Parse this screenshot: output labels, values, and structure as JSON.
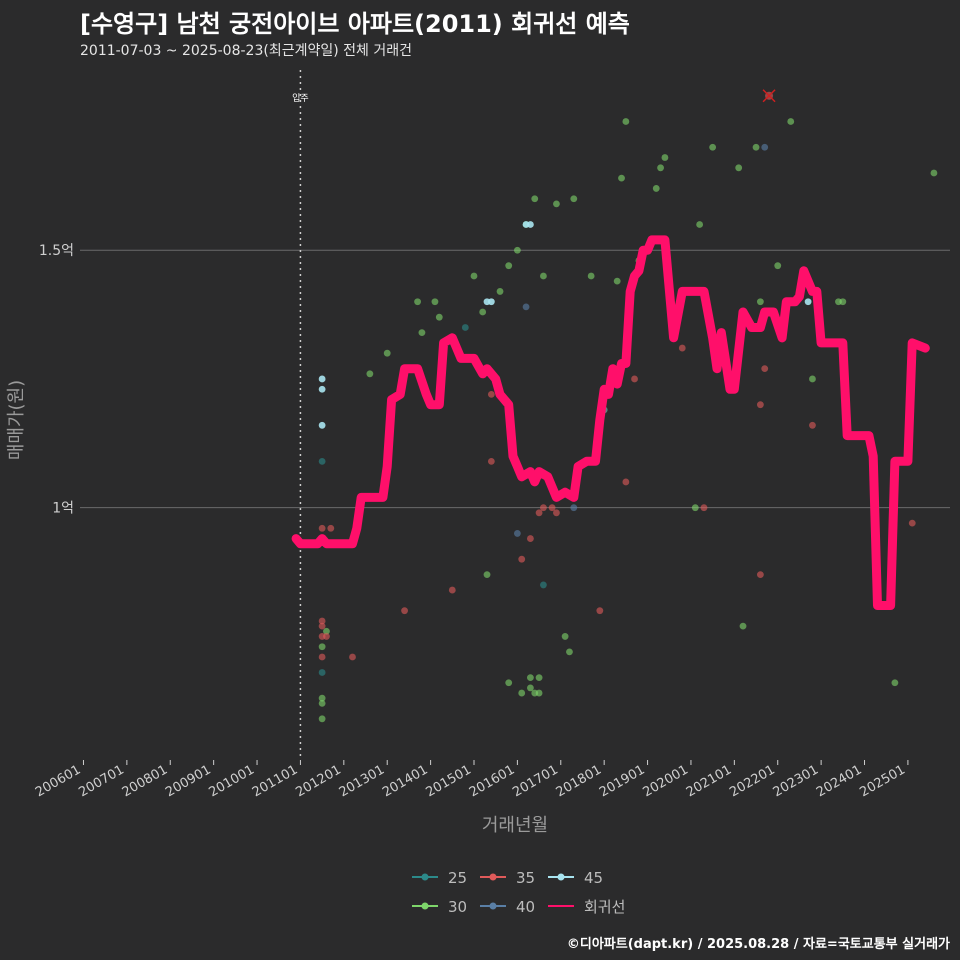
{
  "header": {
    "title": "[수영구] 남천 궁전아이브 아파트(2011) 회귀선 예측",
    "subtitle": "2011-07-03 ~ 2025-08-23(최근계약일) 전체 거래건"
  },
  "caption": "©디아파트(dapt.kr) / 2025.08.28 / 자료=국토교통부 실거래가",
  "colors": {
    "background": "#2b2b2c",
    "gridline": "#6b6b6b",
    "s25": "#2c8a8a",
    "s30": "#7ed66b",
    "s35": "#e05a5a",
    "s40": "#5a7fa6",
    "s45": "#a8e4f0",
    "regression": "#ff0f6a"
  },
  "chart_data": {
    "type": "scatter",
    "title": "[수영구] 남천 궁전아이브 아파트(2011) 회귀선 예측",
    "xlabel": "거래년월",
    "ylabel": "매매가(원)",
    "x_domain": [
      2005.92,
      2025.97
    ],
    "ylim": [
      0.51,
      1.85
    ],
    "x_ticks": [
      "200601",
      "200701",
      "200801",
      "200901",
      "201001",
      "201101",
      "201201",
      "201301",
      "201401",
      "201501",
      "201601",
      "201701",
      "201801",
      "201901",
      "202001",
      "202101",
      "202201",
      "202301",
      "202401",
      "202501"
    ],
    "y_ticks": [
      {
        "value": 1.0,
        "label": "1억"
      },
      {
        "value": 1.5,
        "label": "1.5억"
      }
    ],
    "vline": {
      "x": 2011.0,
      "label": "입주"
    },
    "legend": {
      "position": "bottom",
      "entries": [
        "25",
        "30",
        "35",
        "40",
        "45",
        "회귀선"
      ]
    },
    "series": [
      {
        "name": "25",
        "points": [
          [
            2011.5,
            0.68
          ],
          [
            2011.5,
            1.09
          ],
          [
            2014.8,
            1.35
          ],
          [
            2016.6,
            0.85
          ]
        ]
      },
      {
        "name": "30",
        "points": [
          [
            2011.5,
            0.63
          ],
          [
            2011.5,
            0.62
          ],
          [
            2011.5,
            0.59
          ],
          [
            2011.5,
            0.73
          ],
          [
            2011.6,
            0.76
          ],
          [
            2012.6,
            1.26
          ],
          [
            2013.0,
            1.3
          ],
          [
            2013.7,
            1.4
          ],
          [
            2013.8,
            1.34
          ],
          [
            2014.1,
            1.4
          ],
          [
            2014.2,
            1.37
          ],
          [
            2015.0,
            1.45
          ],
          [
            2015.2,
            1.38
          ],
          [
            2015.3,
            0.87
          ],
          [
            2015.6,
            1.42
          ],
          [
            2015.8,
            1.47
          ],
          [
            2015.8,
            0.66
          ],
          [
            2016.0,
            1.5
          ],
          [
            2016.1,
            0.64
          ],
          [
            2016.2,
            1.55
          ],
          [
            2016.3,
            0.67
          ],
          [
            2016.3,
            0.65
          ],
          [
            2016.4,
            0.64
          ],
          [
            2016.4,
            1.6
          ],
          [
            2016.5,
            0.67
          ],
          [
            2016.5,
            0.64
          ],
          [
            2016.6,
            1.45
          ],
          [
            2016.9,
            1.59
          ],
          [
            2017.1,
            0.75
          ],
          [
            2017.2,
            0.72
          ],
          [
            2017.3,
            1.6
          ],
          [
            2017.7,
            1.45
          ],
          [
            2018.0,
            1.19
          ],
          [
            2018.3,
            1.44
          ],
          [
            2018.4,
            1.64
          ],
          [
            2018.5,
            1.75
          ],
          [
            2018.8,
            1.48
          ],
          [
            2019.2,
            1.62
          ],
          [
            2019.3,
            1.66
          ],
          [
            2019.4,
            1.68
          ],
          [
            2020.1,
            1.0
          ],
          [
            2020.2,
            1.55
          ],
          [
            2020.5,
            1.7
          ],
          [
            2021.1,
            1.66
          ],
          [
            2021.2,
            0.77
          ],
          [
            2021.5,
            1.7
          ],
          [
            2021.6,
            1.4
          ],
          [
            2022.0,
            1.47
          ],
          [
            2022.3,
            1.75
          ],
          [
            2022.8,
            1.25
          ],
          [
            2023.4,
            1.4
          ],
          [
            2023.5,
            1.4
          ],
          [
            2024.7,
            0.66
          ],
          [
            2025.6,
            1.65
          ]
        ]
      },
      {
        "name": "35",
        "points": [
          [
            2011.5,
            0.96
          ],
          [
            2011.5,
            0.78
          ],
          [
            2011.5,
            0.77
          ],
          [
            2011.5,
            0.75
          ],
          [
            2011.5,
            0.71
          ],
          [
            2011.6,
            0.75
          ],
          [
            2011.7,
            0.96
          ],
          [
            2012.2,
            0.71
          ],
          [
            2013.4,
            0.8
          ],
          [
            2014.5,
            0.84
          ],
          [
            2015.4,
            1.09
          ],
          [
            2015.4,
            1.22
          ],
          [
            2016.1,
            0.9
          ],
          [
            2016.3,
            0.94
          ],
          [
            2016.5,
            0.99
          ],
          [
            2016.6,
            1.0
          ],
          [
            2016.8,
            1.0
          ],
          [
            2016.9,
            0.99
          ],
          [
            2017.9,
            0.8
          ],
          [
            2018.5,
            1.05
          ],
          [
            2018.7,
            1.25
          ],
          [
            2019.8,
            1.31
          ],
          [
            2020.3,
            1.0
          ],
          [
            2021.6,
            1.2
          ],
          [
            2021.6,
            0.87
          ],
          [
            2021.7,
            1.27
          ],
          [
            2022.8,
            1.16
          ],
          [
            2025.1,
            0.97
          ]
        ]
      },
      {
        "name": "40",
        "points": [
          [
            2016.0,
            0.95
          ],
          [
            2016.2,
            1.39
          ],
          [
            2017.3,
            1.0
          ],
          [
            2018.0,
            1.19
          ],
          [
            2021.7,
            1.7
          ]
        ]
      },
      {
        "name": "45",
        "points": [
          [
            2011.5,
            1.25
          ],
          [
            2011.5,
            1.23
          ],
          [
            2011.5,
            1.16
          ],
          [
            2015.3,
            1.4
          ],
          [
            2015.4,
            1.4
          ],
          [
            2016.2,
            1.55
          ],
          [
            2016.3,
            1.55
          ],
          [
            2022.7,
            1.4
          ]
        ]
      }
    ],
    "excluded_points": [
      [
        2021.8,
        1.8
      ]
    ],
    "regression": [
      [
        2010.9,
        0.94
      ],
      [
        2011.0,
        0.93
      ],
      [
        2011.4,
        0.93
      ],
      [
        2011.5,
        0.94
      ],
      [
        2011.6,
        0.93
      ],
      [
        2012.2,
        0.93
      ],
      [
        2012.3,
        0.96
      ],
      [
        2012.4,
        1.02
      ],
      [
        2012.7,
        1.02
      ],
      [
        2012.9,
        1.02
      ],
      [
        2013.0,
        1.08
      ],
      [
        2013.1,
        1.21
      ],
      [
        2013.3,
        1.22
      ],
      [
        2013.4,
        1.27
      ],
      [
        2013.7,
        1.27
      ],
      [
        2013.9,
        1.22
      ],
      [
        2014.0,
        1.2
      ],
      [
        2014.2,
        1.2
      ],
      [
        2014.3,
        1.32
      ],
      [
        2014.5,
        1.33
      ],
      [
        2014.7,
        1.29
      ],
      [
        2015.0,
        1.29
      ],
      [
        2015.2,
        1.26
      ],
      [
        2015.3,
        1.27
      ],
      [
        2015.5,
        1.25
      ],
      [
        2015.6,
        1.22
      ],
      [
        2015.8,
        1.2
      ],
      [
        2015.9,
        1.1
      ],
      [
        2016.0,
        1.08
      ],
      [
        2016.1,
        1.06
      ],
      [
        2016.3,
        1.07
      ],
      [
        2016.4,
        1.05
      ],
      [
        2016.5,
        1.07
      ],
      [
        2016.7,
        1.06
      ],
      [
        2016.9,
        1.02
      ],
      [
        2017.1,
        1.03
      ],
      [
        2017.3,
        1.02
      ],
      [
        2017.4,
        1.08
      ],
      [
        2017.6,
        1.09
      ],
      [
        2017.8,
        1.09
      ],
      [
        2017.9,
        1.17
      ],
      [
        2018.0,
        1.23
      ],
      [
        2018.1,
        1.22
      ],
      [
        2018.2,
        1.27
      ],
      [
        2018.3,
        1.24
      ],
      [
        2018.4,
        1.28
      ],
      [
        2018.5,
        1.28
      ],
      [
        2018.6,
        1.42
      ],
      [
        2018.7,
        1.45
      ],
      [
        2018.8,
        1.46
      ],
      [
        2018.9,
        1.5
      ],
      [
        2019.0,
        1.5
      ],
      [
        2019.1,
        1.52
      ],
      [
        2019.4,
        1.52
      ],
      [
        2019.6,
        1.33
      ],
      [
        2019.8,
        1.42
      ],
      [
        2020.3,
        1.42
      ],
      [
        2020.5,
        1.33
      ],
      [
        2020.6,
        1.27
      ],
      [
        2020.7,
        1.34
      ],
      [
        2020.9,
        1.23
      ],
      [
        2021.0,
        1.23
      ],
      [
        2021.2,
        1.38
      ],
      [
        2021.4,
        1.35
      ],
      [
        2021.6,
        1.35
      ],
      [
        2021.7,
        1.38
      ],
      [
        2021.9,
        1.38
      ],
      [
        2022.1,
        1.33
      ],
      [
        2022.2,
        1.4
      ],
      [
        2022.4,
        1.4
      ],
      [
        2022.5,
        1.41
      ],
      [
        2022.6,
        1.46
      ],
      [
        2022.7,
        1.44
      ],
      [
        2022.8,
        1.42
      ],
      [
        2022.9,
        1.42
      ],
      [
        2023.0,
        1.32
      ],
      [
        2023.5,
        1.32
      ],
      [
        2023.6,
        1.14
      ],
      [
        2024.1,
        1.14
      ],
      [
        2024.2,
        1.1
      ],
      [
        2024.3,
        0.81
      ],
      [
        2024.6,
        0.81
      ],
      [
        2024.7,
        1.09
      ],
      [
        2024.8,
        1.09
      ],
      [
        2025.0,
        1.09
      ],
      [
        2025.1,
        1.32
      ],
      [
        2025.4,
        1.31
      ]
    ]
  }
}
